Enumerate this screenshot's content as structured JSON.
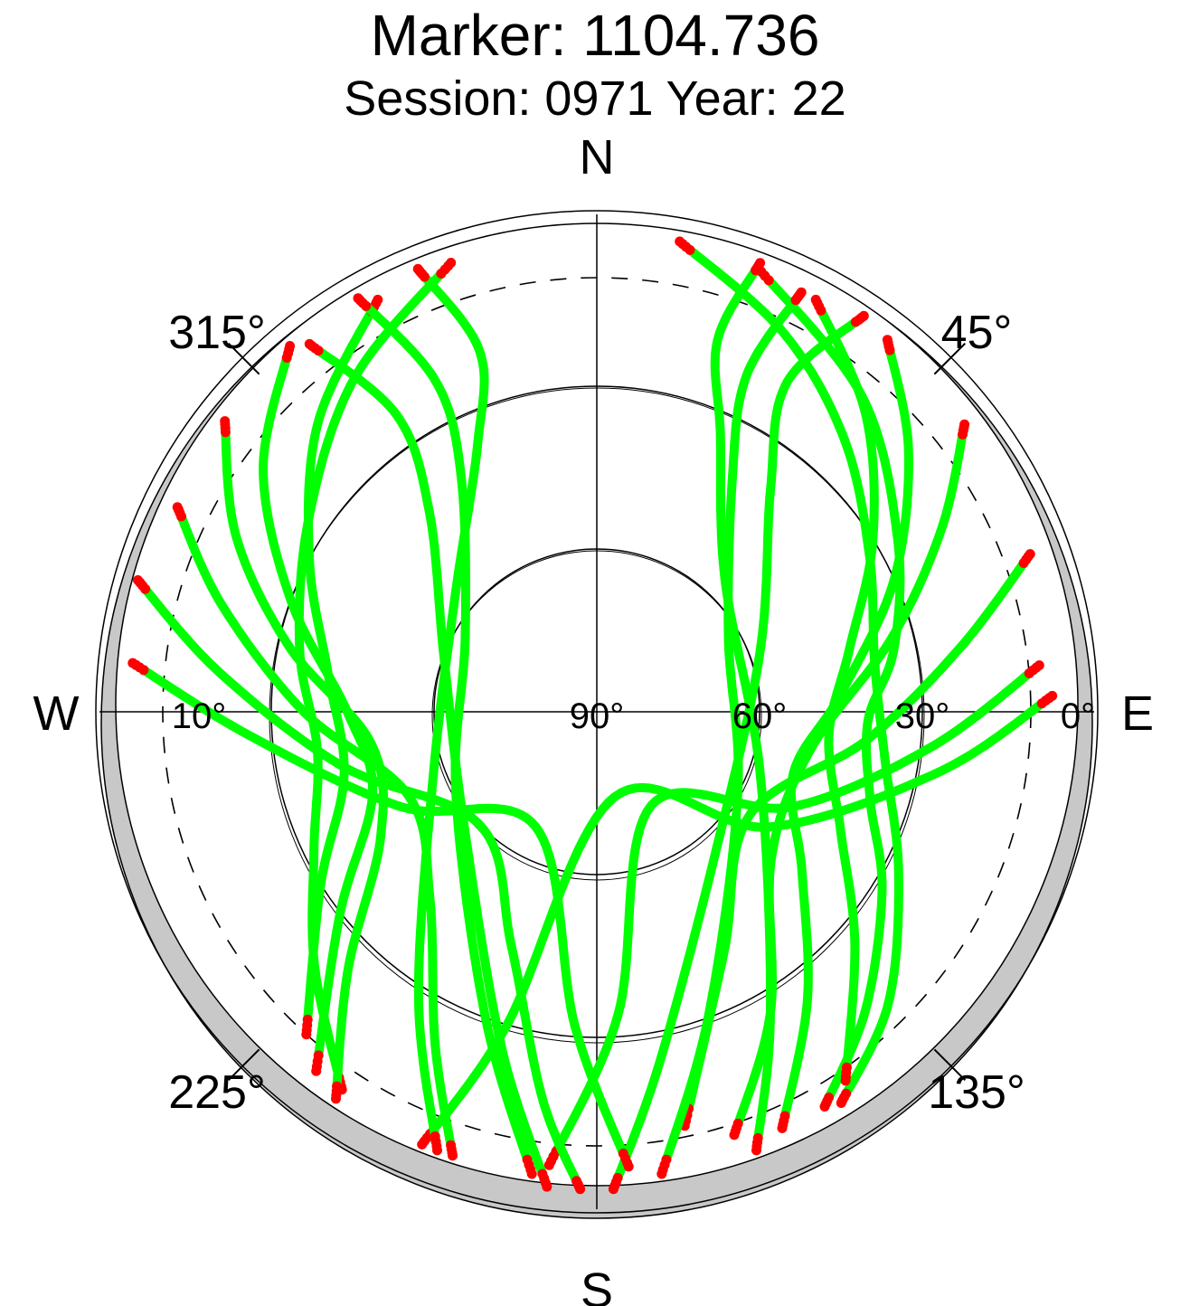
{
  "chart_data": {
    "type": "scatter",
    "title": "Marker: 1104.736",
    "subtitle": "Session: 0971 Year: 22",
    "projection": "polar skyplot (azimuth / elevation)",
    "cardinals": {
      "north": "N",
      "south": "S",
      "east": "E",
      "west": "W"
    },
    "azimuth_labels": [
      "45°",
      "135°",
      "225°",
      "315°"
    ],
    "azimuth_label_values": [
      45,
      135,
      225,
      315
    ],
    "elevation_labels": [
      "0°",
      "30°",
      "60°",
      "90°",
      "10°"
    ],
    "elevation_label_values": [
      0,
      30,
      60,
      90,
      10
    ],
    "elevation_rings": [
      30,
      60
    ],
    "elevation_cutoff_dashed": 10,
    "mask_band": {
      "low": -2,
      "high": 0,
      "color": "#c8c8c8"
    },
    "series": [
      {
        "color": "#00ff00"
      },
      {
        "color": "#ff0000"
      }
    ],
    "tracks": [
      {
        "az": [
          20,
          40,
          60,
          78,
          92,
          108,
          122,
          138,
          150
        ],
        "el": [
          3,
          14,
          26,
          34,
          40,
          37,
          28,
          16,
          6
        ]
      },
      {
        "az": [
          10,
          26,
          42,
          60,
          80,
          100,
          118,
          135,
          148
        ],
        "el": [
          2,
          12,
          22,
          32,
          38,
          36,
          27,
          14,
          5
        ]
      },
      {
        "az": [
          28,
          42,
          58,
          76,
          96,
          116,
          132,
          146
        ],
        "el": [
          4,
          16,
          30,
          42,
          47,
          40,
          26,
          8
        ]
      },
      {
        "az": [
          38,
          50,
          66,
          86,
          108,
          128,
          144,
          156
        ],
        "el": [
          3,
          15,
          30,
          45,
          52,
          42,
          24,
          6
        ]
      },
      {
        "az": [
          52,
          62,
          76,
          100,
          130,
          150,
          162
        ],
        "el": [
          4,
          18,
          34,
          50,
          48,
          26,
          8
        ]
      },
      {
        "az": [
          70,
          80,
          96,
          124,
          152,
          168
        ],
        "el": [
          5,
          22,
          40,
          56,
          40,
          12
        ]
      },
      {
        "az": [
          84,
          96,
          116,
          150,
          176,
          186
        ],
        "el": [
          8,
          28,
          50,
          70,
          34,
          6
        ]
      },
      {
        "az": [
          88,
          100,
          124,
          168,
          196,
          202
        ],
        "el": [
          6,
          26,
          52,
          74,
          30,
          4
        ]
      },
      {
        "az": [
          26,
          24,
          30,
          60,
          120,
          160,
          172
        ],
        "el": [
          4,
          22,
          40,
          62,
          60,
          30,
          4
        ]
      },
      {
        "az": [
          34,
          30,
          38,
          70,
          140,
          170,
          178
        ],
        "el": [
          2,
          20,
          38,
          58,
          56,
          24,
          2
        ]
      },
      {
        "az": [
          20,
          18,
          24,
          44,
          110,
          150,
          160
        ],
        "el": [
          2,
          18,
          34,
          56,
          58,
          26,
          4
        ]
      },
      {
        "az": [
          342,
          324,
          304,
          282,
          262,
          244,
          228,
          214
        ],
        "el": [
          3,
          14,
          26,
          34,
          38,
          32,
          20,
          6
        ]
      },
      {
        "az": [
          332,
          316,
          298,
          278,
          256,
          238,
          222
        ],
        "el": [
          4,
          16,
          30,
          40,
          42,
          30,
          10
        ]
      },
      {
        "az": [
          320,
          306,
          290,
          270,
          250,
          232,
          218
        ],
        "el": [
          2,
          14,
          30,
          44,
          46,
          30,
          6
        ]
      },
      {
        "az": [
          308,
          296,
          282,
          262,
          240,
          224,
          214
        ],
        "el": [
          3,
          16,
          32,
          48,
          44,
          24,
          4
        ]
      },
      {
        "az": [
          296,
          286,
          270,
          246,
          222,
          206,
          198
        ],
        "el": [
          4,
          18,
          36,
          52,
          44,
          22,
          4
        ]
      },
      {
        "az": [
          286,
          276,
          258,
          226,
          200,
          188,
          182
        ],
        "el": [
          2,
          20,
          42,
          60,
          44,
          18,
          2
        ]
      },
      {
        "az": [
          276,
          266,
          244,
          208,
          184,
          176
        ],
        "el": [
          4,
          26,
          50,
          66,
          32,
          6
        ]
      },
      {
        "az": [
          330,
          334,
          330,
          300,
          240,
          200,
          188
        ],
        "el": [
          2,
          22,
          40,
          62,
          60,
          30,
          4
        ]
      },
      {
        "az": [
          322,
          326,
          320,
          290,
          230,
          196,
          186
        ],
        "el": [
          4,
          24,
          42,
          60,
          58,
          26,
          2
        ]
      },
      {
        "az": [
          338,
          342,
          336,
          310,
          250,
          212,
          200
        ],
        "el": [
          2,
          20,
          36,
          56,
          58,
          28,
          4
        ]
      }
    ]
  }
}
